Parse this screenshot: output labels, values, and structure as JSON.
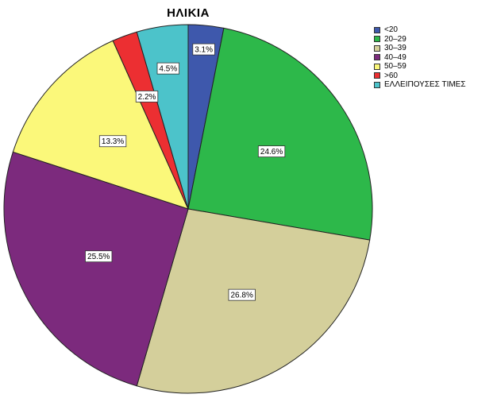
{
  "chart_data": {
    "type": "pie",
    "title": "ΗΛΙΚΙΑ",
    "categories": [
      "<20",
      "20–29",
      "30–39",
      "40–49",
      "50–59",
      ">60",
      "ΕΛΛΕΙΠΟΥΣΕΣ ΤΙΜΕΣ"
    ],
    "values": [
      3.1,
      24.6,
      26.8,
      25.5,
      13.3,
      2.2,
      4.5
    ],
    "labels": [
      "3.1%",
      "24.6%",
      "26.8%",
      "25.5%",
      "13.3%",
      "2.2%",
      "4.5%"
    ],
    "colors": [
      "#3e58ac",
      "#2db84a",
      "#d4cf9b",
      "#7c2a7d",
      "#fbf87a",
      "#ec2f32",
      "#4cc3ca"
    ],
    "legend_position": "top-right",
    "start": "12 o'clock",
    "direction": "clockwise"
  }
}
